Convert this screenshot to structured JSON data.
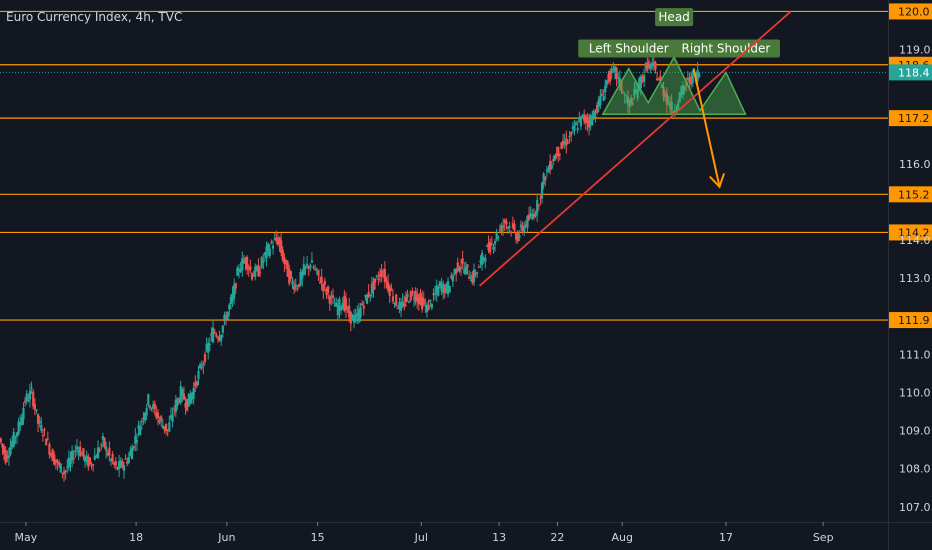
{
  "chart_data": {
    "type": "candlestick",
    "title": "Euro Currency Index, 4h, TVC",
    "x_ticks": [
      "May",
      "18",
      "Jun",
      "15",
      "Jul",
      "13",
      "22",
      "Aug",
      "17",
      "Sep"
    ],
    "x_tick_days": [
      0,
      17,
      31,
      45,
      61,
      73,
      82,
      92,
      108,
      123
    ],
    "y_ticks": [
      107.0,
      108.0,
      109.0,
      110.0,
      111.0,
      113.0,
      114.0,
      116.0,
      119.0
    ],
    "ylim": [
      106.6,
      120.3
    ],
    "xlim_days": [
      -4,
      133
    ],
    "horizontal_levels": [
      120.0,
      118.6,
      117.2,
      115.2,
      114.2,
      111.9
    ],
    "current_price": 118.4,
    "trend_line": {
      "from": [
        70,
        112.8
      ],
      "to": [
        118,
        120.0
      ]
    },
    "projection_arrow": {
      "from": [
        103,
        118.5
      ],
      "to": [
        107,
        115.4
      ]
    },
    "pattern": {
      "labels": [
        "Left Shoulder",
        "Head",
        "Right Shoulder"
      ],
      "label_points": [
        [
          93,
          119.0
        ],
        [
          100,
          119.3
        ],
        [
          108,
          119.0
        ]
      ],
      "peaks": [
        [
          89,
          117.3
        ],
        [
          93,
          118.5
        ],
        [
          96,
          117.6
        ],
        [
          100,
          118.8
        ],
        [
          104,
          117.4
        ],
        [
          108,
          118.4
        ],
        [
          111,
          117.3
        ]
      ]
    },
    "closes": [
      {
        "d": -4,
        "v": 108.8
      },
      {
        "d": -3,
        "v": 108.3
      },
      {
        "d": -2,
        "v": 108.7
      },
      {
        "d": -1,
        "v": 109.1
      },
      {
        "d": 0,
        "v": 109.8
      },
      {
        "d": 1,
        "v": 110.0
      },
      {
        "d": 2,
        "v": 109.2
      },
      {
        "d": 3,
        "v": 108.9
      },
      {
        "d": 4,
        "v": 108.4
      },
      {
        "d": 5,
        "v": 108.1
      },
      {
        "d": 6,
        "v": 107.9
      },
      {
        "d": 7,
        "v": 108.2
      },
      {
        "d": 8,
        "v": 108.6
      },
      {
        "d": 9,
        "v": 108.3
      },
      {
        "d": 10,
        "v": 108.1
      },
      {
        "d": 11,
        "v": 108.4
      },
      {
        "d": 12,
        "v": 108.7
      },
      {
        "d": 13,
        "v": 108.3
      },
      {
        "d": 14,
        "v": 108.0
      },
      {
        "d": 15,
        "v": 108.1
      },
      {
        "d": 16,
        "v": 108.3
      },
      {
        "d": 17,
        "v": 108.8
      },
      {
        "d": 18,
        "v": 109.3
      },
      {
        "d": 19,
        "v": 109.8
      },
      {
        "d": 20,
        "v": 109.5
      },
      {
        "d": 21,
        "v": 109.2
      },
      {
        "d": 22,
        "v": 109.0
      },
      {
        "d": 23,
        "v": 109.6
      },
      {
        "d": 24,
        "v": 110.0
      },
      {
        "d": 25,
        "v": 109.7
      },
      {
        "d": 26,
        "v": 110.1
      },
      {
        "d": 27,
        "v": 110.6
      },
      {
        "d": 28,
        "v": 111.1
      },
      {
        "d": 29,
        "v": 111.6
      },
      {
        "d": 30,
        "v": 111.5
      },
      {
        "d": 31,
        "v": 112.0
      },
      {
        "d": 32,
        "v": 112.5
      },
      {
        "d": 33,
        "v": 113.3
      },
      {
        "d": 34,
        "v": 113.5
      },
      {
        "d": 35,
        "v": 113.1
      },
      {
        "d": 36,
        "v": 113.2
      },
      {
        "d": 37,
        "v": 113.6
      },
      {
        "d": 38,
        "v": 113.9
      },
      {
        "d": 39,
        "v": 114.0
      },
      {
        "d": 40,
        "v": 113.4
      },
      {
        "d": 41,
        "v": 112.9
      },
      {
        "d": 42,
        "v": 112.8
      },
      {
        "d": 43,
        "v": 113.2
      },
      {
        "d": 44,
        "v": 113.4
      },
      {
        "d": 45,
        "v": 113.1
      },
      {
        "d": 46,
        "v": 112.8
      },
      {
        "d": 47,
        "v": 112.5
      },
      {
        "d": 48,
        "v": 112.2
      },
      {
        "d": 49,
        "v": 112.4
      },
      {
        "d": 50,
        "v": 112.0
      },
      {
        "d": 51,
        "v": 111.9
      },
      {
        "d": 52,
        "v": 112.3
      },
      {
        "d": 53,
        "v": 112.6
      },
      {
        "d": 54,
        "v": 112.9
      },
      {
        "d": 55,
        "v": 113.2
      },
      {
        "d": 56,
        "v": 112.8
      },
      {
        "d": 57,
        "v": 112.4
      },
      {
        "d": 58,
        "v": 112.2
      },
      {
        "d": 59,
        "v": 112.5
      },
      {
        "d": 60,
        "v": 112.6
      },
      {
        "d": 61,
        "v": 112.4
      },
      {
        "d": 62,
        "v": 112.2
      },
      {
        "d": 63,
        "v": 112.5
      },
      {
        "d": 64,
        "v": 112.8
      },
      {
        "d": 65,
        "v": 112.7
      },
      {
        "d": 66,
        "v": 113.1
      },
      {
        "d": 67,
        "v": 113.4
      },
      {
        "d": 68,
        "v": 113.2
      },
      {
        "d": 69,
        "v": 113.0
      },
      {
        "d": 70,
        "v": 113.3
      },
      {
        "d": 71,
        "v": 113.7
      },
      {
        "d": 72,
        "v": 113.9
      },
      {
        "d": 73,
        "v": 114.2
      },
      {
        "d": 74,
        "v": 114.5
      },
      {
        "d": 75,
        "v": 114.3
      },
      {
        "d": 76,
        "v": 114.1
      },
      {
        "d": 77,
        "v": 114.4
      },
      {
        "d": 78,
        "v": 114.6
      },
      {
        "d": 79,
        "v": 114.9
      },
      {
        "d": 80,
        "v": 115.6
      },
      {
        "d": 81,
        "v": 116.0
      },
      {
        "d": 82,
        "v": 116.3
      },
      {
        "d": 83,
        "v": 116.5
      },
      {
        "d": 84,
        "v": 116.7
      },
      {
        "d": 85,
        "v": 117.0
      },
      {
        "d": 86,
        "v": 117.2
      },
      {
        "d": 87,
        "v": 117.1
      },
      {
        "d": 88,
        "v": 117.4
      },
      {
        "d": 89,
        "v": 117.8
      },
      {
        "d": 90,
        "v": 118.3
      },
      {
        "d": 91,
        "v": 118.4
      },
      {
        "d": 92,
        "v": 118.0
      },
      {
        "d": 93,
        "v": 117.5
      },
      {
        "d": 94,
        "v": 117.8
      },
      {
        "d": 95,
        "v": 118.2
      },
      {
        "d": 96,
        "v": 118.6
      },
      {
        "d": 97,
        "v": 118.5
      },
      {
        "d": 98,
        "v": 118.1
      },
      {
        "d": 99,
        "v": 117.7
      },
      {
        "d": 100,
        "v": 117.4
      },
      {
        "d": 101,
        "v": 117.8
      },
      {
        "d": 102,
        "v": 118.1
      },
      {
        "d": 103,
        "v": 118.3
      },
      {
        "d": 104,
        "v": 118.4
      }
    ],
    "colors": {
      "background": "#131722",
      "up": "#26a69a",
      "down": "#ef5350",
      "level_line": "#ff9800",
      "trend_line": "#e53935",
      "pattern_fill": "#4caf50",
      "pattern_label_bg": "#4a7a3a",
      "current_price_bg": "#26a69a"
    }
  }
}
